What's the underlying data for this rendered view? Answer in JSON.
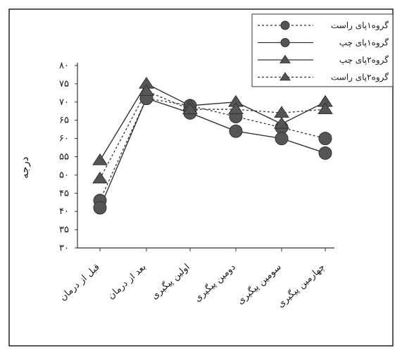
{
  "chart_data": {
    "type": "line",
    "title": "",
    "xlabel": "",
    "ylabel": "درجه",
    "ylim": [
      30,
      80
    ],
    "yticks": [
      30,
      35,
      40,
      45,
      50,
      55,
      60,
      65,
      70,
      75,
      80
    ],
    "ytick_labels": [
      "۳۰",
      "۳۵",
      "۴۰",
      "۴۵",
      "۵۰",
      "۵۵",
      "۶۰",
      "۶۵",
      "۷۰",
      "۷۵",
      "۸۰"
    ],
    "categories": [
      "قبل از درمان",
      "بعد از درمان",
      "اولین پیگیری",
      "دومین پیگیری",
      "سومین پیگیری",
      "چهارمین پیگیری"
    ],
    "grid": false,
    "legend_position": "top-right",
    "series": [
      {
        "name": "گروه۱پای راست",
        "marker": "circle",
        "line": "dotted",
        "values": [
          43,
          71,
          69,
          66,
          63,
          60
        ]
      },
      {
        "name": "گروه۱پای چپ",
        "marker": "circle",
        "line": "solid",
        "values": [
          41,
          71,
          67,
          62,
          60,
          56
        ]
      },
      {
        "name": "گروه۲پای چپ",
        "marker": "triangle",
        "line": "solid",
        "values": [
          54,
          75,
          69,
          70,
          64,
          70
        ]
      },
      {
        "name": "گروه۲پای راست",
        "marker": "triangle",
        "line": "dotted",
        "values": [
          49,
          73,
          68,
          68,
          67,
          68
        ]
      }
    ],
    "colors": {
      "ink": "#333333",
      "marker": "#555555",
      "frame": "#222222"
    }
  }
}
